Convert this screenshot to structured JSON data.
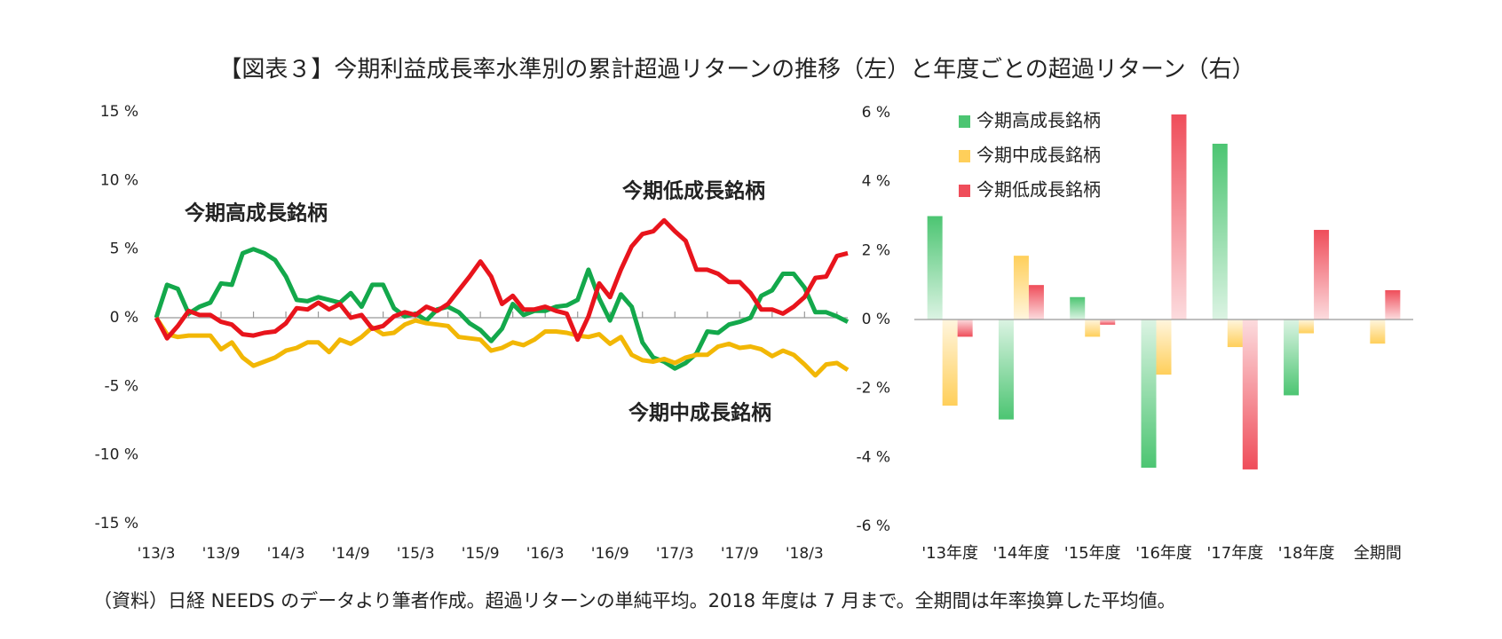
{
  "title": "【図表３】今期利益成長率水準別の累計超過リターンの推移（左）と年度ごとの超過リターン（右）",
  "note": "（資料）日経 NEEDS のデータより筆者作成。超過リターンの単純平均。2018 年度は 7 月まで。全期間は年率換算した平均値。",
  "chart_data": [
    {
      "type": "line",
      "categories": [
        "'13/3",
        null,
        null,
        null,
        null,
        null,
        "'13/9",
        null,
        null,
        null,
        null,
        null,
        "'14/3",
        null,
        null,
        null,
        null,
        null,
        "'14/9",
        null,
        null,
        null,
        null,
        null,
        "'15/3",
        null,
        null,
        null,
        null,
        null,
        "'15/9",
        null,
        null,
        null,
        null,
        null,
        "'16/3",
        null,
        null,
        null,
        null,
        null,
        "'16/9",
        null,
        null,
        null,
        null,
        null,
        "'17/3",
        null,
        null,
        null,
        null,
        null,
        "'17/9",
        null,
        null,
        null,
        null,
        null,
        "'18/3",
        null,
        null,
        null,
        null
      ],
      "series": [
        {
          "name": "今期高成長銘柄",
          "color": "#13a84b",
          "values": [
            0,
            2.4,
            2.1,
            0.3,
            0.8,
            1.1,
            2.5,
            2.4,
            4.7,
            5.0,
            4.7,
            4.2,
            3.0,
            1.3,
            1.2,
            1.5,
            1.3,
            1.1,
            1.8,
            0.8,
            2.4,
            2.4,
            0.7,
            0.1,
            0.3,
            -0.2,
            0.6,
            0.8,
            0.4,
            -0.4,
            -0.9,
            -1.7,
            -0.8,
            1.0,
            0.2,
            0.5,
            0.5,
            0.8,
            0.9,
            1.3,
            3.5,
            1.4,
            -0.2,
            1.7,
            0.8,
            -1.8,
            -2.9,
            -3.2,
            -3.7,
            -3.3,
            -2.6,
            -1.0,
            -1.1,
            -0.5,
            -0.3,
            0.0,
            1.6,
            2.0,
            3.2,
            3.2,
            2.2,
            0.4,
            0.4,
            0.1,
            -0.3
          ]
        },
        {
          "name": "今期中成長銘柄",
          "color": "#f2b705",
          "values": [
            0,
            -1.2,
            -1.4,
            -1.3,
            -1.3,
            -1.3,
            -2.3,
            -1.8,
            -2.9,
            -3.5,
            -3.2,
            -2.9,
            -2.4,
            -2.2,
            -1.8,
            -1.8,
            -2.5,
            -1.6,
            -1.9,
            -1.4,
            -0.7,
            -1.2,
            -1.1,
            -0.5,
            -0.2,
            -0.4,
            -0.5,
            -0.6,
            -1.4,
            -1.5,
            -1.6,
            -2.4,
            -2.2,
            -1.8,
            -2.0,
            -1.6,
            -1.0,
            -1.0,
            -1.1,
            -1.3,
            -1.4,
            -1.2,
            -1.9,
            -1.4,
            -2.7,
            -3.1,
            -3.2,
            -3.0,
            -3.3,
            -2.9,
            -2.7,
            -2.7,
            -2.1,
            -1.9,
            -2.2,
            -2.1,
            -2.3,
            -2.8,
            -2.4,
            -2.7,
            -3.4,
            -4.2,
            -3.4,
            -3.3,
            -3.8
          ]
        },
        {
          "name": "今期低成長銘柄",
          "color": "#e8141c",
          "values": [
            0,
            -1.5,
            -0.6,
            0.5,
            0.2,
            0.2,
            -0.3,
            -0.5,
            -1.2,
            -1.3,
            -1.1,
            -1.0,
            -0.4,
            0.7,
            0.6,
            1.1,
            0.6,
            1.0,
            0.0,
            0.2,
            -0.8,
            -0.6,
            0.1,
            0.4,
            0.2,
            0.8,
            0.5,
            1.0,
            2.0,
            3.0,
            4.1,
            3.0,
            1.0,
            1.6,
            0.6,
            0.6,
            0.8,
            0.5,
            0.3,
            -1.6,
            0.1,
            2.5,
            1.5,
            3.5,
            5.2,
            6.1,
            6.3,
            7.1,
            6.3,
            5.6,
            3.5,
            3.5,
            3.2,
            2.6,
            2.6,
            1.8,
            0.6,
            0.6,
            0.3,
            0.8,
            1.5,
            2.9,
            3.0,
            4.5,
            4.7
          ]
        }
      ],
      "ylim": [
        -15,
        15
      ],
      "yticks": [
        {
          "value": -15,
          "label": "-15 %"
        },
        {
          "value": -10,
          "label": "-10 %"
        },
        {
          "value": -5,
          "label": "-5 %"
        },
        {
          "value": 0,
          "label": "0 %"
        },
        {
          "value": 5,
          "label": "5 %"
        },
        {
          "value": 10,
          "label": "10 %"
        },
        {
          "value": 15,
          "label": "15 %"
        }
      ]
    },
    {
      "type": "bar",
      "categories": [
        "'13年度",
        "'14年度",
        "'15年度",
        "'16年度",
        "'17年度",
        "'18年度",
        "全期間"
      ],
      "series": [
        {
          "name": "今期高成長銘柄",
          "color": "#4cc572",
          "values": [
            3.0,
            -2.9,
            0.65,
            -4.3,
            5.1,
            -2.2,
            0.0
          ]
        },
        {
          "name": "今期中成長銘柄",
          "color": "#ffcf5a",
          "values": [
            -2.5,
            1.85,
            -0.5,
            -1.6,
            -0.8,
            -0.4,
            -0.7
          ]
        },
        {
          "name": "今期低成長銘柄",
          "color": "#ef4d5a",
          "values": [
            -0.5,
            1.0,
            -0.15,
            5.95,
            -4.35,
            2.6,
            0.85
          ]
        }
      ],
      "ylim": [
        -6,
        6
      ],
      "yticks": [
        {
          "value": -6,
          "label": "-6 %"
        },
        {
          "value": -4,
          "label": "-4 %"
        },
        {
          "value": -2,
          "label": "-2 %"
        },
        {
          "value": 0,
          "label": "0 %"
        },
        {
          "value": 2,
          "label": "2 %"
        },
        {
          "value": 4,
          "label": "4 %"
        },
        {
          "value": 6,
          "label": "6 %"
        }
      ],
      "legend": "upper left"
    }
  ]
}
